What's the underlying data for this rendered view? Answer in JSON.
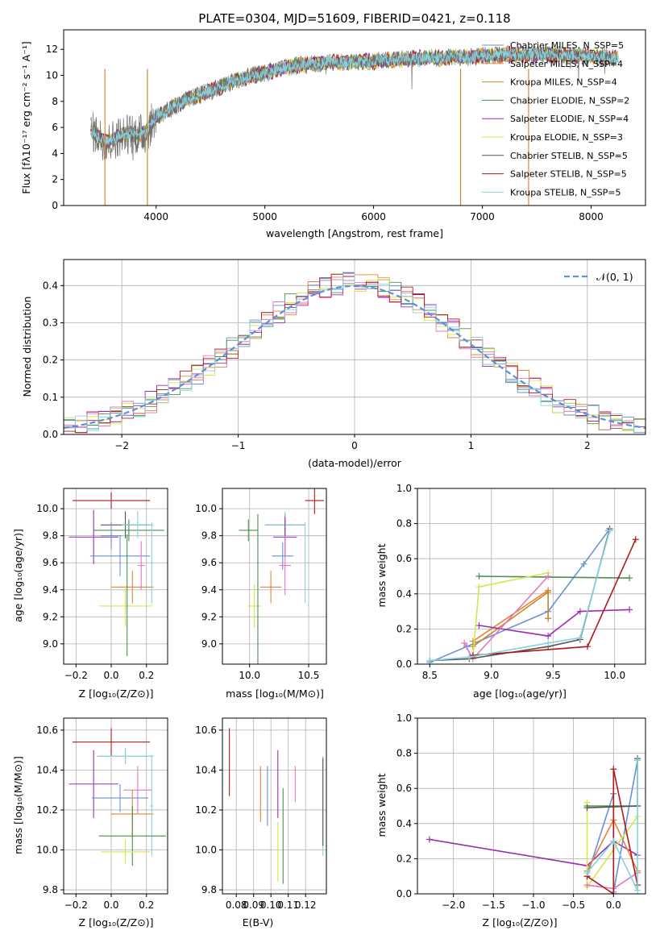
{
  "chart_data": [
    {
      "id": "spectrum",
      "type": "line",
      "title": "PLATE=0304, MJD=51609, FIBERID=0421, z=0.118",
      "xlabel": "wavelength [Angstrom, rest frame]",
      "ylabel": "Flux [fλ10⁻¹⁷ erg cm⁻² s⁻¹ A⁻¹]",
      "xlim": [
        3150,
        8500
      ],
      "ylim": [
        0,
        13.5
      ],
      "xticks": [
        4000,
        5000,
        6000,
        7000,
        8000
      ],
      "yticks": [
        0,
        2,
        4,
        6,
        8,
        10,
        12
      ],
      "legend_position": "right",
      "legend": [
        {
          "label": "Chabrier MILES, N_SSP=5",
          "color": "#6a8fd6"
        },
        {
          "label": "Salpeter MILES, N_SSP=4",
          "color": "#e8823a"
        },
        {
          "label": "Kroupa MILES, N_SSP=4",
          "color": "#c28b2a"
        },
        {
          "label": "Chabrier ELODIE, N_SSP=2",
          "color": "#4a8f4f"
        },
        {
          "label": "Salpeter ELODIE, N_SSP=4",
          "color": "#9a2fb0"
        },
        {
          "label": "Kroupa ELODIE, N_SSP=3",
          "color": "#d4e84a"
        },
        {
          "label": "Chabrier STELIB, N_SSP=5",
          "color": "#555555"
        },
        {
          "label": "Salpeter STELIB, N_SSP=5",
          "color": "#b01a1a"
        },
        {
          "label": "Kroupa STELIB, N_SSP=5",
          "color": "#86d2de"
        }
      ],
      "continuum": {
        "x": [
          3400,
          3550,
          3700,
          3900,
          4000,
          4300,
          4500,
          4800,
          5000,
          5300,
          5600,
          6000,
          6400,
          6800,
          7200,
          7600,
          8000,
          8250
        ],
        "y": [
          5.8,
          4.8,
          5.5,
          5.5,
          6.8,
          8.2,
          8.8,
          9.8,
          10.2,
          10.8,
          11.0,
          11.1,
          11.3,
          11.4,
          11.6,
          11.6,
          11.5,
          11.3
        ]
      },
      "vertical_lines": [
        {
          "x": 3530,
          "color": "#e8823a"
        },
        {
          "x": 3920,
          "color": "#c28b2a"
        },
        {
          "x": 6800,
          "color": "#c28b2a"
        },
        {
          "x": 7425,
          "color": "#e8823a"
        }
      ]
    },
    {
      "id": "residuals",
      "type": "histogram",
      "xlabel": "(data-model)/error",
      "ylabel": "Normed distribution",
      "xlim": [
        -2.5,
        2.5
      ],
      "ylim": [
        0,
        0.47
      ],
      "xticks": [
        -2,
        -1,
        0,
        1,
        2
      ],
      "yticks": [
        0.0,
        0.1,
        0.2,
        0.3,
        0.4
      ],
      "grid": true,
      "legend_position": "top-right",
      "reference_curve": {
        "label": "𝒩(0, 1)",
        "mean": 0,
        "sigma": 1,
        "color": "#5b8fd6"
      },
      "bin_width": 0.1,
      "x_start": -2.5
    },
    {
      "id": "z-age",
      "type": "errorbar",
      "xlabel": "Z [log₁₀(Z/Z⊙)]",
      "ylabel": "age  [log₁₀(age/yr)]",
      "xlim": [
        -0.27,
        0.32
      ],
      "ylim": [
        8.85,
        10.15
      ],
      "xticks": [
        -0.2,
        0.0,
        0.2
      ],
      "yticks": [
        9.0,
        9.2,
        9.4,
        9.6,
        9.8,
        10.0
      ],
      "grid": true,
      "points": [
        {
          "x": 0.0,
          "y": 10.06,
          "xerr": 0.22,
          "yerr": 0.06,
          "color": "#b01a1a"
        },
        {
          "x": 0.08,
          "y": 9.88,
          "xerr": 0.14,
          "yerr": 0.1,
          "color": "#555555"
        },
        {
          "x": 0.1,
          "y": 9.84,
          "xerr": 0.2,
          "yerr": 0.08,
          "color": "#4a8f4f"
        },
        {
          "x": 0.15,
          "y": 9.88,
          "xerr": 0.09,
          "yerr": 0.1,
          "color": "#86d2de"
        },
        {
          "x": -0.1,
          "y": 9.79,
          "xerr": 0.14,
          "yerr": 0.2,
          "color": "#9a2fb0"
        },
        {
          "x": 0.0,
          "y": 9.8,
          "xerr": 0.06,
          "yerr": 0.1,
          "color": "#6a8fd6"
        },
        {
          "x": 0.05,
          "y": 9.65,
          "xerr": 0.17,
          "yerr": 0.15,
          "color": "#6a8fd6"
        },
        {
          "x": 0.17,
          "y": 9.58,
          "xerr": 0.02,
          "yerr": 0.18,
          "color": "#e377c2"
        },
        {
          "x": 0.12,
          "y": 9.42,
          "xerr": 0.12,
          "yerr": 0.12,
          "color": "#e8823a"
        },
        {
          "x": 0.23,
          "y": 9.6,
          "xerr": 0.01,
          "yerr": 0.3,
          "color": "#86d2de"
        },
        {
          "x": 0.08,
          "y": 9.28,
          "xerr": 0.15,
          "yerr": 0.15,
          "color": "#d4e84a"
        },
        {
          "x": 0.09,
          "y": 9.36,
          "xerr": 0.0,
          "yerr": 0.45,
          "color": "#4a8f4f"
        }
      ]
    },
    {
      "id": "mass-age",
      "type": "errorbar",
      "xlabel": "mass [log₁₀(M/M⊙)]",
      "ylabel": "",
      "xlim": [
        9.77,
        10.65
      ],
      "ylim": [
        8.85,
        10.15
      ],
      "xticks": [
        10.0,
        10.5
      ],
      "yticks": [
        9.0,
        9.2,
        9.4,
        9.6,
        9.8,
        10.0
      ],
      "grid": true,
      "points": [
        {
          "x": 10.55,
          "y": 10.06,
          "xerr": 0.08,
          "yerr": 0.1,
          "color": "#b01a1a"
        },
        {
          "x": 10.3,
          "y": 9.88,
          "xerr": 0.17,
          "yerr": 0.08,
          "color": "#555555"
        },
        {
          "x": 9.99,
          "y": 9.84,
          "xerr": 0.08,
          "yerr": 0.08,
          "color": "#4a8f4f"
        },
        {
          "x": 10.3,
          "y": 9.88,
          "xerr": 0.17,
          "yerr": 0.1,
          "color": "#86d2de"
        },
        {
          "x": 10.3,
          "y": 9.79,
          "xerr": 0.1,
          "yerr": 0.15,
          "color": "#9a2fb0"
        },
        {
          "x": 10.28,
          "y": 9.65,
          "xerr": 0.09,
          "yerr": 0.1,
          "color": "#6a8fd6"
        },
        {
          "x": 10.3,
          "y": 9.58,
          "xerr": 0.05,
          "yerr": 0.22,
          "color": "#e377c2"
        },
        {
          "x": 10.18,
          "y": 9.42,
          "xerr": 0.09,
          "yerr": 0.12,
          "color": "#e8823a"
        },
        {
          "x": 10.47,
          "y": 9.6,
          "xerr": 0.0,
          "yerr": 0.3,
          "color": "#86d2de"
        },
        {
          "x": 10.04,
          "y": 9.28,
          "xerr": 0.06,
          "yerr": 0.16,
          "color": "#d4e84a"
        },
        {
          "x": 10.07,
          "y": 9.36,
          "xerr": 0.0,
          "yerr": 0.6,
          "color": "#4a8f4f"
        }
      ]
    },
    {
      "id": "age-weight",
      "type": "line",
      "xlabel": "age  [log₁₀(age/yr)]",
      "ylabel": "mass weight",
      "xlim": [
        8.4,
        10.25
      ],
      "ylim": [
        0,
        1.0
      ],
      "xticks": [
        8.5,
        9.0,
        9.5,
        10.0
      ],
      "yticks": [
        0.0,
        0.2,
        0.4,
        0.6,
        0.8,
        1.0
      ],
      "grid": true,
      "series": [
        {
          "color": "#6a8fd6",
          "x": [
            8.5,
            8.8,
            9.46,
            9.75,
            9.95
          ],
          "y": [
            0.01,
            0.1,
            0.3,
            0.57,
            0.76
          ]
        },
        {
          "color": "#e8823a",
          "x": [
            8.85,
            9.46,
            9.46
          ],
          "y": [
            0.13,
            0.42,
            0.26
          ]
        },
        {
          "color": "#c28b2a",
          "x": [
            8.85,
            9.46,
            9.46
          ],
          "y": [
            0.1,
            0.41,
            0.26
          ]
        },
        {
          "color": "#4a8f4f",
          "x": [
            8.9,
            10.12
          ],
          "y": [
            0.5,
            0.49
          ]
        },
        {
          "color": "#9a2fb0",
          "x": [
            8.9,
            9.46,
            9.72,
            10.12
          ],
          "y": [
            0.22,
            0.16,
            0.3,
            0.31
          ]
        },
        {
          "color": "#d4e84a",
          "x": [
            8.85,
            8.9,
            9.46
          ],
          "y": [
            0.04,
            0.44,
            0.52
          ]
        },
        {
          "color": "#e377c2",
          "x": [
            8.78,
            8.85,
            9.46
          ],
          "y": [
            0.12,
            0.03,
            0.5
          ]
        },
        {
          "color": "#555555",
          "x": [
            8.5,
            8.82,
            9.46,
            9.72,
            9.96
          ],
          "y": [
            0.02,
            0.03,
            0.1,
            0.14,
            0.77
          ]
        },
        {
          "color": "#b01a1a",
          "x": [
            8.85,
            9.78,
            10.17
          ],
          "y": [
            0.05,
            0.1,
            0.71
          ]
        },
        {
          "color": "#86d2de",
          "x": [
            8.5,
            8.82,
            9.46,
            9.72,
            9.96
          ],
          "y": [
            0.02,
            0.04,
            0.12,
            0.15,
            0.76
          ]
        }
      ]
    },
    {
      "id": "z-mass",
      "type": "errorbar",
      "xlabel": "Z [log₁₀(Z/Z⊙)]",
      "ylabel": "mass [log₁₀(M/M⊙)]",
      "xlim": [
        -0.27,
        0.32
      ],
      "ylim": [
        9.78,
        10.66
      ],
      "xticks": [
        -0.2,
        0.0,
        0.2
      ],
      "yticks": [
        9.8,
        10.0,
        10.2,
        10.4,
        10.6
      ],
      "grid": true,
      "points": [
        {
          "x": 0.0,
          "y": 10.54,
          "xerr": 0.22,
          "yerr": 0.07,
          "color": "#b01a1a"
        },
        {
          "x": 0.08,
          "y": 10.47,
          "xerr": 0.16,
          "yerr": 0.04,
          "color": "#555555"
        },
        {
          "x": 0.08,
          "y": 10.47,
          "xerr": 0.16,
          "yerr": 0.04,
          "color": "#86d2de"
        },
        {
          "x": -0.1,
          "y": 10.33,
          "xerr": 0.14,
          "yerr": 0.17,
          "color": "#9a2fb0"
        },
        {
          "x": 0.15,
          "y": 10.3,
          "xerr": 0.08,
          "yerr": 0.12,
          "color": "#e377c2"
        },
        {
          "x": 0.05,
          "y": 10.26,
          "xerr": 0.16,
          "yerr": 0.07,
          "color": "#6a8fd6"
        },
        {
          "x": 0.12,
          "y": 10.18,
          "xerr": 0.12,
          "yerr": 0.12,
          "color": "#e8823a"
        },
        {
          "x": 0.23,
          "y": 10.22,
          "xerr": 0.01,
          "yerr": 0.25,
          "color": "#86d2de"
        },
        {
          "x": 0.12,
          "y": 10.07,
          "xerr": 0.19,
          "yerr": 0.15,
          "color": "#4a8f4f"
        },
        {
          "x": 0.08,
          "y": 9.99,
          "xerr": 0.14,
          "yerr": 0.06,
          "color": "#d4e84a"
        }
      ]
    },
    {
      "id": "ebv-mass",
      "type": "errorbar",
      "xlabel": "E(B-V)",
      "ylabel": "",
      "xlim": [
        0.072,
        0.132
      ],
      "ylim": [
        9.78,
        10.66
      ],
      "xticks": [
        0.08,
        0.09,
        0.1,
        0.11,
        0.12
      ],
      "yticks": [
        9.8,
        10.0,
        10.2,
        10.4,
        10.6
      ],
      "grid": true,
      "points": [
        {
          "x": 0.076,
          "y": 10.44,
          "xerr": 0.0,
          "yerr": 0.17,
          "color": "#b01a1a"
        },
        {
          "x": 0.094,
          "y": 10.28,
          "xerr": 0.0,
          "yerr": 0.14,
          "color": "#e8823a"
        },
        {
          "x": 0.098,
          "y": 10.27,
          "xerr": 0.0,
          "yerr": 0.15,
          "color": "#6a8fd6"
        },
        {
          "x": 0.104,
          "y": 10.33,
          "xerr": 0.0,
          "yerr": 0.17,
          "color": "#9a2fb0"
        },
        {
          "x": 0.104,
          "y": 9.99,
          "xerr": 0.0,
          "yerr": 0.15,
          "color": "#d4e84a"
        },
        {
          "x": 0.107,
          "y": 10.07,
          "xerr": 0.0,
          "yerr": 0.24,
          "color": "#4a8f4f"
        },
        {
          "x": 0.114,
          "y": 10.33,
          "xerr": 0.0,
          "yerr": 0.09,
          "color": "#e377c2"
        },
        {
          "x": 0.13,
          "y": 10.22,
          "xerr": 0.0,
          "yerr": 0.25,
          "color": "#86d2de"
        },
        {
          "x": 0.13,
          "y": 10.24,
          "xerr": 0.0,
          "yerr": 0.22,
          "color": "#555555"
        }
      ]
    },
    {
      "id": "z-weight",
      "type": "line",
      "xlabel": "Z [log₁₀(Z/Z⊙)]",
      "ylabel": "mass weight",
      "xlim": [
        -2.45,
        0.4
      ],
      "ylim": [
        0,
        1.0
      ],
      "xticks": [
        -2.0,
        -1.5,
        -1.0,
        -0.5,
        0.0
      ],
      "yticks": [
        0.0,
        0.2,
        0.4,
        0.6,
        0.8,
        1.0
      ],
      "grid": true,
      "series": [
        {
          "color": "#9a2fb0",
          "x": [
            -2.3,
            -0.33,
            0.0,
            0.3
          ],
          "y": [
            0.31,
            0.16,
            0.3,
            0.22
          ]
        },
        {
          "color": "#6a8fd6",
          "x": [
            -0.33,
            0.0,
            0.0,
            0.3
          ],
          "y": [
            0.1,
            0.57,
            0.01,
            0.76
          ]
        },
        {
          "color": "#e8823a",
          "x": [
            -0.33,
            0.0,
            0.3
          ],
          "y": [
            0.13,
            0.42,
            0.13
          ]
        },
        {
          "color": "#4a8f4f",
          "x": [
            -0.33,
            0.3
          ],
          "y": [
            0.5,
            0.5
          ]
        },
        {
          "color": "#d4e84a",
          "x": [
            -0.33,
            -0.33,
            0.3
          ],
          "y": [
            0.52,
            0.04,
            0.44
          ]
        },
        {
          "color": "#e377c2",
          "x": [
            -0.33,
            0.0,
            0.3
          ],
          "y": [
            0.05,
            0.03,
            0.12
          ]
        },
        {
          "color": "#555555",
          "x": [
            -0.33,
            0.3,
            0.3
          ],
          "y": [
            0.49,
            0.5,
            0.77
          ]
        },
        {
          "color": "#b01a1a",
          "x": [
            -0.33,
            0.0,
            0.0,
            0.3
          ],
          "y": [
            0.1,
            0.0,
            0.71,
            0.05
          ]
        },
        {
          "color": "#86d2de",
          "x": [
            -0.33,
            0.0,
            0.3,
            0.3
          ],
          "y": [
            0.12,
            0.3,
            0.02,
            0.76
          ]
        }
      ]
    }
  ]
}
